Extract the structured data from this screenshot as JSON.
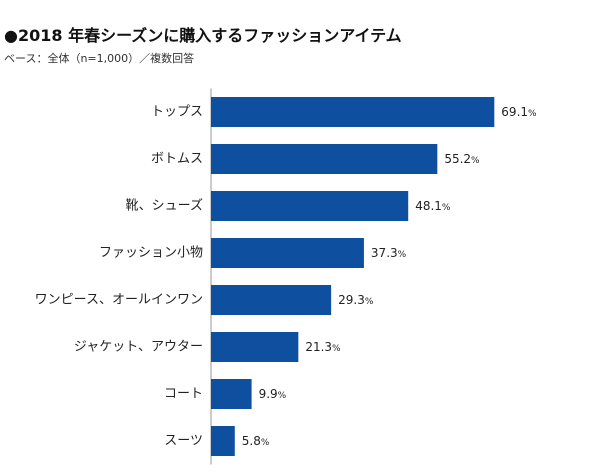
{
  "title": "●2018 年春シーズンに購入するファッションアイテム",
  "subtitle": "ベース：全体（n=1,000）／複数回答",
  "chart_data": {
    "type": "bar",
    "orientation": "horizontal",
    "categories": [
      "トップス",
      "ボトムス",
      "靴、シューズ",
      "ファッション小物",
      "ワンピース、オールインワン",
      "ジャケット、アウター",
      "コート",
      "スーツ"
    ],
    "values": [
      69.1,
      55.2,
      48.1,
      37.3,
      29.3,
      21.3,
      9.9,
      5.8
    ],
    "unit": "%",
    "bar_color": "#0f4fa0",
    "xlim": [
      0,
      100
    ],
    "grid": false
  }
}
